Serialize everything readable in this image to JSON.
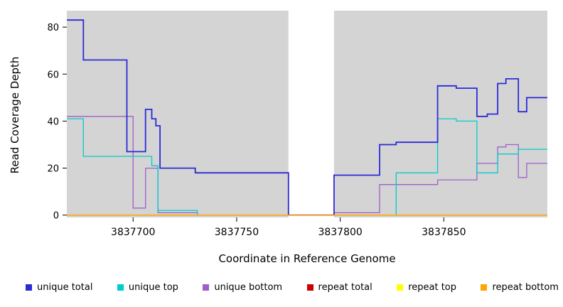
{
  "chart_data": {
    "type": "line",
    "style": "step",
    "title": "",
    "xlabel": "Coordinate in Reference Genome",
    "ylabel": "Read Coverage Depth",
    "xlim": [
      3837668,
      3837900
    ],
    "ylim": [
      -1,
      87
    ],
    "plot_bg": "#d4d4d4",
    "masked_region": [
      3837775,
      3837797
    ],
    "xticks": [
      {
        "value": 3837700,
        "label": "3837700"
      },
      {
        "value": 3837750,
        "label": "3837750"
      },
      {
        "value": 3837800,
        "label": "3837800"
      },
      {
        "value": 3837850,
        "label": "3837850"
      }
    ],
    "yticks": [
      {
        "value": 0,
        "label": "0"
      },
      {
        "value": 20,
        "label": "20"
      },
      {
        "value": 40,
        "label": "40"
      },
      {
        "value": 60,
        "label": "60"
      },
      {
        "value": 80,
        "label": "80"
      }
    ],
    "series": [
      {
        "name": "unique total",
        "color": "#2b2bd5",
        "width": 1.8,
        "points": [
          [
            3837668,
            83
          ],
          [
            3837676,
            66
          ],
          [
            3837697,
            27
          ],
          [
            3837706,
            45
          ],
          [
            3837709,
            41
          ],
          [
            3837711,
            38
          ],
          [
            3837713,
            20
          ],
          [
            3837730,
            18
          ],
          [
            3837775,
            0
          ],
          [
            3837797,
            17
          ],
          [
            3837819,
            30
          ],
          [
            3837827,
            31
          ],
          [
            3837847,
            55
          ],
          [
            3837856,
            54
          ],
          [
            3837866,
            42
          ],
          [
            3837871,
            43
          ],
          [
            3837876,
            56
          ],
          [
            3837880,
            58
          ],
          [
            3837886,
            44
          ],
          [
            3837890,
            50
          ]
        ]
      },
      {
        "name": "unique top",
        "color": "#00cccc",
        "width": 1.3,
        "points": [
          [
            3837668,
            41
          ],
          [
            3837676,
            25
          ],
          [
            3837709,
            21
          ],
          [
            3837712,
            2
          ],
          [
            3837731,
            0
          ],
          [
            3837827,
            18
          ],
          [
            3837847,
            41
          ],
          [
            3837856,
            40
          ],
          [
            3837866,
            18
          ],
          [
            3837876,
            26
          ],
          [
            3837886,
            28
          ]
        ]
      },
      {
        "name": "unique bottom",
        "color": "#a05fc8",
        "width": 1.3,
        "points": [
          [
            3837668,
            42
          ],
          [
            3837700,
            3
          ],
          [
            3837706,
            20
          ],
          [
            3837712,
            1
          ],
          [
            3837731,
            0
          ],
          [
            3837797,
            1
          ],
          [
            3837819,
            13
          ],
          [
            3837847,
            15
          ],
          [
            3837866,
            22
          ],
          [
            3837876,
            29
          ],
          [
            3837880,
            30
          ],
          [
            3837886,
            16
          ],
          [
            3837890,
            22
          ]
        ]
      },
      {
        "name": "repeat total",
        "color": "#cc0000",
        "width": 1.2,
        "points": [
          [
            3837668,
            0
          ]
        ]
      },
      {
        "name": "repeat top",
        "color": "#ffff00",
        "width": 1.2,
        "points": [
          [
            3837668,
            0
          ]
        ]
      },
      {
        "name": "repeat bottom",
        "color": "#ffa500",
        "width": 1.5,
        "points": [
          [
            3837668,
            0
          ]
        ]
      }
    ],
    "draw_order": [
      "repeat total",
      "repeat top",
      "unique bottom",
      "unique top",
      "unique total",
      "repeat bottom"
    ],
    "legend_position": "bottom"
  }
}
